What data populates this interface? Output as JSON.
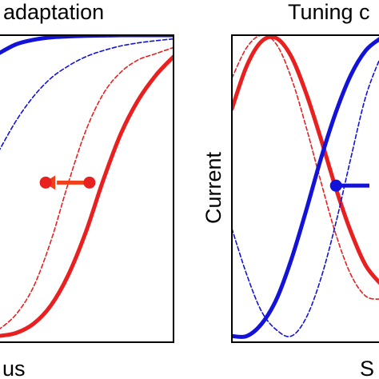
{
  "panels": [
    {
      "title": "adaptation",
      "xlabel": "us",
      "ylabel": ""
    },
    {
      "title": "Tuning c",
      "xlabel": "S",
      "ylabel": "Current"
    }
  ],
  "colors": {
    "red": "#e8201f",
    "blue": "#1212d8",
    "arrow": "#f0401a",
    "axis": "#000000"
  },
  "chart_data": [
    {
      "type": "line",
      "title": "adaptation",
      "xlabel": "us",
      "ylabel": "",
      "xlim": [
        0,
        1
      ],
      "ylim": [
        0,
        1
      ],
      "grid": false,
      "x": [
        0,
        0.1,
        0.2,
        0.3,
        0.4,
        0.5,
        0.6,
        0.7,
        0.8,
        0.9,
        1.0
      ],
      "series": [
        {
          "style": "solid",
          "color": "blue",
          "values": [
            0.94,
            0.97,
            0.985,
            0.993,
            0.996,
            0.998,
            0.999,
            1.0,
            1.0,
            1.0,
            1.0
          ]
        },
        {
          "style": "dashed",
          "color": "blue",
          "values": [
            0.62,
            0.72,
            0.8,
            0.86,
            0.9,
            0.93,
            0.95,
            0.965,
            0.975,
            0.982,
            0.988
          ]
        },
        {
          "style": "dashed",
          "color": "red",
          "values": [
            0.04,
            0.09,
            0.18,
            0.33,
            0.52,
            0.69,
            0.81,
            0.88,
            0.92,
            0.94,
            0.96
          ]
        },
        {
          "style": "solid",
          "color": "red",
          "values": [
            0.02,
            0.03,
            0.06,
            0.12,
            0.22,
            0.36,
            0.53,
            0.68,
            0.79,
            0.87,
            0.93
          ]
        }
      ],
      "markers": [
        {
          "x": 0.27,
          "y": 0.52,
          "color": "red"
        },
        {
          "x": 0.52,
          "y": 0.52,
          "color": "red"
        }
      ],
      "arrow": {
        "from_x": 0.52,
        "to_x": 0.27,
        "y": 0.52,
        "color": "arrow"
      }
    },
    {
      "type": "line",
      "title": "Tuning c",
      "xlabel": "S",
      "ylabel": "Current",
      "xlim": [
        0,
        1
      ],
      "ylim": [
        0,
        1
      ],
      "grid": false,
      "x": [
        0,
        0.1,
        0.2,
        0.3,
        0.4,
        0.5,
        0.6,
        0.7,
        0.8,
        0.9,
        1.0
      ],
      "series": [
        {
          "style": "solid",
          "color": "red",
          "values": [
            0.76,
            0.9,
            0.98,
            0.99,
            0.93,
            0.81,
            0.66,
            0.5,
            0.36,
            0.25,
            0.19
          ]
        },
        {
          "style": "dashed",
          "color": "red",
          "values": [
            0.86,
            0.96,
            1.0,
            0.97,
            0.86,
            0.7,
            0.52,
            0.35,
            0.22,
            0.15,
            0.14
          ]
        },
        {
          "style": "solid",
          "color": "blue",
          "values": [
            0.02,
            0.02,
            0.06,
            0.14,
            0.27,
            0.43,
            0.6,
            0.75,
            0.87,
            0.95,
            0.99
          ]
        },
        {
          "style": "dashed",
          "color": "blue",
          "values": [
            0.37,
            0.22,
            0.1,
            0.04,
            0.02,
            0.08,
            0.21,
            0.39,
            0.6,
            0.8,
            0.93
          ]
        }
      ],
      "markers": [
        {
          "x": 0.7,
          "y": 0.51,
          "color": "blue"
        }
      ],
      "arrow": {
        "from_x": 0.7,
        "to_x": 1.0,
        "y": 0.51,
        "color": "blue"
      }
    }
  ]
}
